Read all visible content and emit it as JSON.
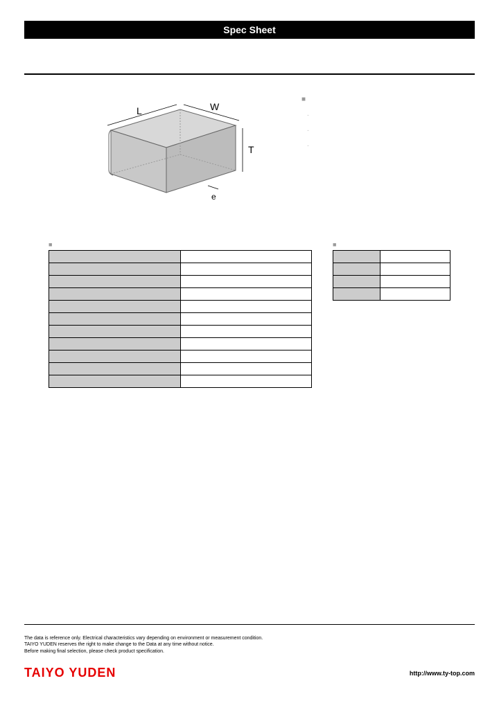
{
  "header": {
    "title": "Spec Sheet"
  },
  "diagram": {
    "labels": {
      "L": "L",
      "W": "W",
      "T": "T",
      "e": "e"
    },
    "fill": "#cccccc",
    "stroke": "#666666"
  },
  "features": {
    "heading_marker": "■",
    "items": [
      "-",
      "-",
      "-"
    ]
  },
  "spec_table": {
    "heading_marker": "■",
    "rows": [
      {
        "label": "",
        "value": ""
      },
      {
        "label": "",
        "value": ""
      },
      {
        "label": "",
        "value": ""
      },
      {
        "label": "",
        "value": ""
      },
      {
        "label": "",
        "value": ""
      },
      {
        "label": "",
        "value": ""
      },
      {
        "label": "",
        "value": ""
      },
      {
        "label": "",
        "value": ""
      },
      {
        "label": "",
        "value": ""
      },
      {
        "label": "",
        "value": ""
      },
      {
        "label": "",
        "value": ""
      }
    ]
  },
  "dim_table": {
    "heading_marker": "■",
    "rows": [
      {
        "label": "",
        "value": ""
      },
      {
        "label": "",
        "value": ""
      },
      {
        "label": "",
        "value": ""
      },
      {
        "label": "",
        "value": ""
      }
    ]
  },
  "footer": {
    "disclaimer1": "The data is reference only. Electrical characteristics vary depending on environment or measurement condition.",
    "disclaimer2": "TAIYO YUDEN reserves the right to make change to the Data at any time without notice.",
    "disclaimer3": "Before making final selection, please check product specification.",
    "logo": "TAIYO YUDEN",
    "url": "http://www.ty-top.com"
  },
  "colors": {
    "brand_red": "#e60000",
    "cell_gray": "#cccccc"
  }
}
